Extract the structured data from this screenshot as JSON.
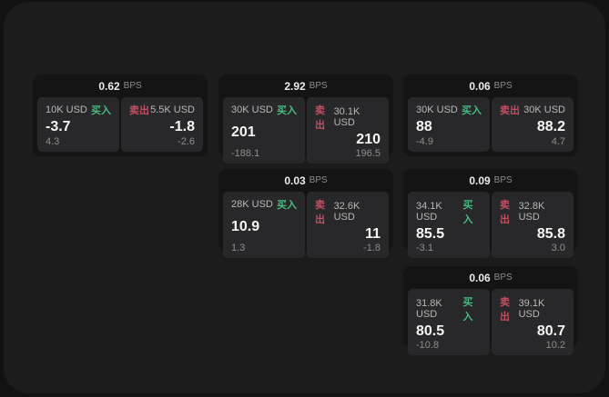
{
  "labels": {
    "bps": "BPS",
    "buy": "买入",
    "sell": "卖出"
  },
  "colors": {
    "buy": "#45bb7e",
    "sell": "#c24f60",
    "panel_bg": "#1c1c1d",
    "card_bg": "#141415",
    "tile_bg": "#28282a"
  },
  "cards": [
    {
      "row": 0,
      "col": 0,
      "bps": "0.62",
      "buy": {
        "size": "10K USD",
        "price": "-3.7",
        "delta": "4.3"
      },
      "sell": {
        "size": "5.5K USD",
        "price": "-1.8",
        "delta": "-2.6"
      }
    },
    {
      "row": 0,
      "col": 1,
      "bps": "2.92",
      "buy": {
        "size": "30K USD",
        "price": "201",
        "delta": "-188.1"
      },
      "sell": {
        "size": "30.1K USD",
        "price": "210",
        "delta": "196.5"
      }
    },
    {
      "row": 0,
      "col": 2,
      "bps": "0.06",
      "buy": {
        "size": "30K USD",
        "price": "88",
        "delta": "-4.9"
      },
      "sell": {
        "size": "30K USD",
        "price": "88.2",
        "delta": "4.7"
      }
    },
    {
      "row": 1,
      "col": 1,
      "bps": "0.03",
      "buy": {
        "size": "28K USD",
        "price": "10.9",
        "delta": "1.3"
      },
      "sell": {
        "size": "32.6K USD",
        "price": "11",
        "delta": "-1.8"
      }
    },
    {
      "row": 1,
      "col": 2,
      "bps": "0.09",
      "buy": {
        "size": "34.1K USD",
        "price": "85.5",
        "delta": "-3.1"
      },
      "sell": {
        "size": "32.8K USD",
        "price": "85.8",
        "delta": "3.0"
      }
    },
    {
      "row": 2,
      "col": 2,
      "bps": "0.06",
      "buy": {
        "size": "31.8K USD",
        "price": "80.5",
        "delta": "-10.8"
      },
      "sell": {
        "size": "39.1K USD",
        "price": "80.7",
        "delta": "10.2"
      }
    }
  ]
}
